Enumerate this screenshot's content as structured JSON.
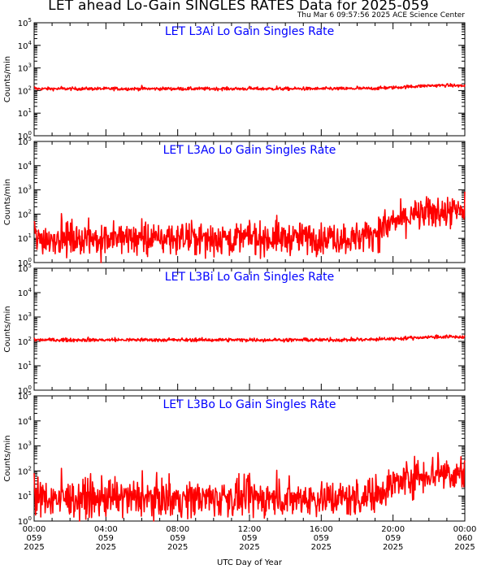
{
  "page": {
    "title": "LET ahead Lo-Gain SINGLES RATES Data for 2025-059",
    "timestamp": "Thu Mar  6 09:57:56 2025 ACE Science Center",
    "xlabel": "UTC Day of Year"
  },
  "colors": {
    "trace": "#ff0000",
    "panel_title": "#0000ff",
    "axes": "#000000"
  },
  "chart_data": [
    {
      "type": "line",
      "title": "LET L3Ai Lo Gain Singles Rate",
      "ylabel": "Counts/min",
      "yscale": "log",
      "ylim": [
        1,
        100000
      ],
      "ytick_labels": [
        "10^0",
        "10^1",
        "10^2",
        "10^3",
        "10^4",
        "10^5"
      ],
      "xlim": [
        "00:00",
        "24:00"
      ],
      "series": [
        {
          "x_hours": [
            0,
            4,
            8,
            12,
            16,
            18,
            19,
            20,
            21,
            22,
            23,
            24
          ],
          "values": [
            120,
            120,
            120,
            120,
            120,
            122,
            125,
            135,
            150,
            165,
            170,
            160
          ]
        }
      ]
    },
    {
      "type": "line",
      "title": "LET L3Ao Lo Gain Singles Rate",
      "ylabel": "Counts/min",
      "yscale": "log",
      "ylim": [
        1,
        100000
      ],
      "ytick_labels": [
        "10^0",
        "10^1",
        "10^2",
        "10^3",
        "10^4",
        "10^5"
      ],
      "xlim": [
        "00:00",
        "24:00"
      ],
      "series": [
        {
          "x_hours": [
            0,
            4,
            8,
            12,
            16,
            18,
            19,
            20,
            21,
            22,
            23,
            24
          ],
          "values": [
            10,
            10,
            10,
            10,
            10,
            10,
            18,
            45,
            80,
            110,
            125,
            120
          ]
        }
      ]
    },
    {
      "type": "line",
      "title": "LET L3Bi Lo Gain Singles Rate",
      "ylabel": "Counts/min",
      "yscale": "log",
      "ylim": [
        1,
        100000
      ],
      "ytick_labels": [
        "10^0",
        "10^1",
        "10^2",
        "10^3",
        "10^4",
        "10^5"
      ],
      "xlim": [
        "00:00",
        "24:00"
      ],
      "series": [
        {
          "x_hours": [
            0,
            4,
            8,
            12,
            16,
            18,
            19,
            20,
            21,
            22,
            23,
            24
          ],
          "values": [
            115,
            115,
            115,
            115,
            115,
            117,
            120,
            128,
            140,
            150,
            155,
            150
          ]
        }
      ]
    },
    {
      "type": "line",
      "title": "LET L3Bo Lo Gain Singles Rate",
      "ylabel": "Counts/min",
      "yscale": "log",
      "ylim": [
        1,
        100000
      ],
      "ytick_labels": [
        "10^0",
        "10^1",
        "10^2",
        "10^3",
        "10^4",
        "10^5"
      ],
      "xlim": [
        "00:00",
        "24:00"
      ],
      "series": [
        {
          "x_hours": [
            0,
            4,
            8,
            12,
            16,
            18,
            19,
            20,
            21,
            22,
            23,
            24
          ],
          "values": [
            8,
            8,
            8,
            8,
            8,
            8,
            12,
            30,
            55,
            80,
            90,
            80
          ]
        }
      ]
    }
  ],
  "xticks": [
    {
      "time": "00:00",
      "doy": "059",
      "year": "2025"
    },
    {
      "time": "04:00",
      "doy": "059",
      "year": "2025"
    },
    {
      "time": "08:00",
      "doy": "059",
      "year": "2025"
    },
    {
      "time": "12:00",
      "doy": "059",
      "year": "2025"
    },
    {
      "time": "16:00",
      "doy": "059",
      "year": "2025"
    },
    {
      "time": "20:00",
      "doy": "059",
      "year": "2025"
    },
    {
      "time": "00:00",
      "doy": "060",
      "year": "2025"
    }
  ]
}
